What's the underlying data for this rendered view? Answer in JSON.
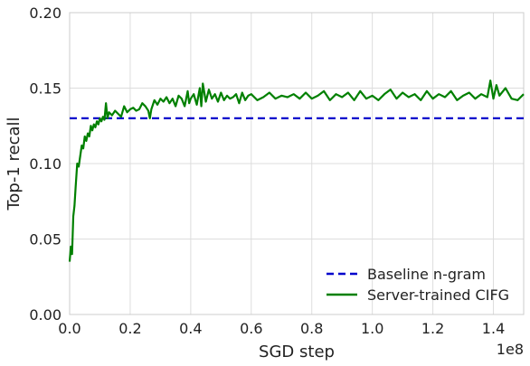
{
  "chart_data": {
    "type": "line",
    "title": "",
    "xlabel": "SGD step",
    "ylabel": "Top-1 recall",
    "x_offset_label": "1e8",
    "xlim": [
      0,
      1.5
    ],
    "ylim": [
      0,
      0.2
    ],
    "x_ticks": [
      "0.0",
      "0.2",
      "0.4",
      "0.6",
      "0.8",
      "1.0",
      "1.2",
      "1.4"
    ],
    "y_ticks": [
      "0.00",
      "0.05",
      "0.10",
      "0.15",
      "0.20"
    ],
    "grid": true,
    "legend_position": "lower-right",
    "series": [
      {
        "name": "Baseline n-gram",
        "style": "dashed",
        "color": "#0000cc",
        "x": [
          0,
          1.5
        ],
        "y": [
          0.13,
          0.13
        ]
      },
      {
        "name": "Server-trained CIFG",
        "style": "solid",
        "color": "#008000",
        "x": [
          0.0,
          0.004,
          0.008,
          0.012,
          0.016,
          0.02,
          0.025,
          0.03,
          0.035,
          0.04,
          0.045,
          0.05,
          0.055,
          0.06,
          0.065,
          0.07,
          0.075,
          0.08,
          0.085,
          0.09,
          0.095,
          0.1,
          0.105,
          0.11,
          0.115,
          0.12,
          0.125,
          0.13,
          0.14,
          0.15,
          0.16,
          0.17,
          0.18,
          0.19,
          0.2,
          0.21,
          0.22,
          0.23,
          0.24,
          0.25,
          0.26,
          0.265,
          0.27,
          0.28,
          0.29,
          0.3,
          0.31,
          0.32,
          0.33,
          0.34,
          0.35,
          0.36,
          0.37,
          0.38,
          0.39,
          0.395,
          0.4,
          0.41,
          0.42,
          0.43,
          0.435,
          0.44,
          0.45,
          0.46,
          0.47,
          0.48,
          0.49,
          0.5,
          0.51,
          0.52,
          0.53,
          0.54,
          0.55,
          0.56,
          0.57,
          0.58,
          0.59,
          0.6,
          0.62,
          0.64,
          0.66,
          0.68,
          0.7,
          0.72,
          0.74,
          0.76,
          0.78,
          0.8,
          0.82,
          0.84,
          0.86,
          0.88,
          0.9,
          0.92,
          0.94,
          0.96,
          0.98,
          1.0,
          1.02,
          1.04,
          1.06,
          1.08,
          1.1,
          1.12,
          1.14,
          1.16,
          1.18,
          1.2,
          1.22,
          1.24,
          1.26,
          1.28,
          1.3,
          1.32,
          1.34,
          1.36,
          1.38,
          1.39,
          1.4,
          1.41,
          1.42,
          1.44,
          1.46,
          1.48,
          1.5
        ],
        "y": [
          0.035,
          0.045,
          0.04,
          0.065,
          0.072,
          0.085,
          0.1,
          0.098,
          0.105,
          0.112,
          0.11,
          0.118,
          0.115,
          0.12,
          0.118,
          0.125,
          0.122,
          0.126,
          0.124,
          0.128,
          0.126,
          0.13,
          0.128,
          0.131,
          0.129,
          0.14,
          0.13,
          0.134,
          0.132,
          0.135,
          0.133,
          0.131,
          0.138,
          0.134,
          0.136,
          0.137,
          0.135,
          0.136,
          0.14,
          0.138,
          0.135,
          0.13,
          0.136,
          0.142,
          0.139,
          0.143,
          0.141,
          0.144,
          0.14,
          0.143,
          0.138,
          0.145,
          0.143,
          0.138,
          0.148,
          0.14,
          0.143,
          0.146,
          0.139,
          0.15,
          0.138,
          0.153,
          0.141,
          0.149,
          0.143,
          0.146,
          0.141,
          0.147,
          0.142,
          0.145,
          0.143,
          0.144,
          0.146,
          0.14,
          0.147,
          0.142,
          0.145,
          0.146,
          0.142,
          0.144,
          0.147,
          0.143,
          0.145,
          0.144,
          0.146,
          0.143,
          0.147,
          0.143,
          0.145,
          0.148,
          0.142,
          0.146,
          0.144,
          0.147,
          0.142,
          0.148,
          0.143,
          0.145,
          0.142,
          0.146,
          0.149,
          0.143,
          0.147,
          0.144,
          0.146,
          0.142,
          0.148,
          0.143,
          0.146,
          0.144,
          0.148,
          0.142,
          0.145,
          0.147,
          0.143,
          0.146,
          0.144,
          0.155,
          0.143,
          0.152,
          0.145,
          0.15,
          0.143,
          0.142,
          0.146
        ]
      }
    ]
  }
}
